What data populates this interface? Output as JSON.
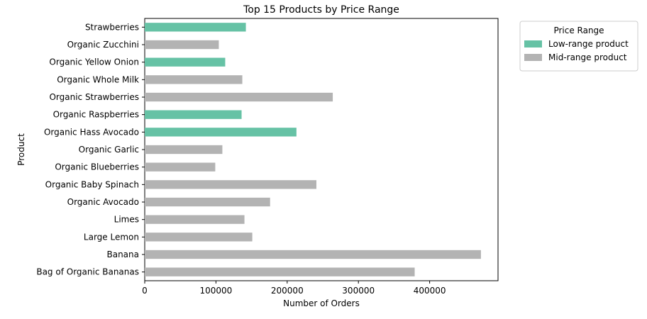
{
  "chart_data": {
    "type": "bar",
    "orientation": "horizontal",
    "title": "Top 15 Products by Price Range",
    "xlabel": "Number of Orders",
    "ylabel": "Product",
    "xlim": [
      0,
      496000
    ],
    "xticks": [
      0,
      100000,
      200000,
      300000,
      400000
    ],
    "grid": false,
    "legend": {
      "title": "Price Range",
      "placement": "outside-top-right",
      "entries": [
        {
          "label": "Low-range product",
          "color": "#66c2a5"
        },
        {
          "label": "Mid-range product",
          "color": "#b3b3b3"
        }
      ]
    },
    "categories": [
      "Strawberries",
      "Organic Zucchini",
      "Organic Yellow Onion",
      "Organic Whole Milk",
      "Organic Strawberries",
      "Organic Raspberries",
      "Organic Hass Avocado",
      "Organic Garlic",
      "Organic Blueberries",
      "Organic Baby Spinach",
      "Organic Avocado",
      "Limes",
      "Large Lemon",
      "Banana",
      "Bag of Organic Bananas"
    ],
    "values": [
      142000,
      104000,
      113000,
      137000,
      264000,
      136000,
      213000,
      109000,
      99000,
      241000,
      176000,
      140000,
      151000,
      472000,
      379000
    ],
    "price_range": [
      "Low-range product",
      "Mid-range product",
      "Low-range product",
      "Mid-range product",
      "Mid-range product",
      "Low-range product",
      "Low-range product",
      "Mid-range product",
      "Mid-range product",
      "Mid-range product",
      "Mid-range product",
      "Mid-range product",
      "Mid-range product",
      "Mid-range product",
      "Mid-range product"
    ]
  }
}
